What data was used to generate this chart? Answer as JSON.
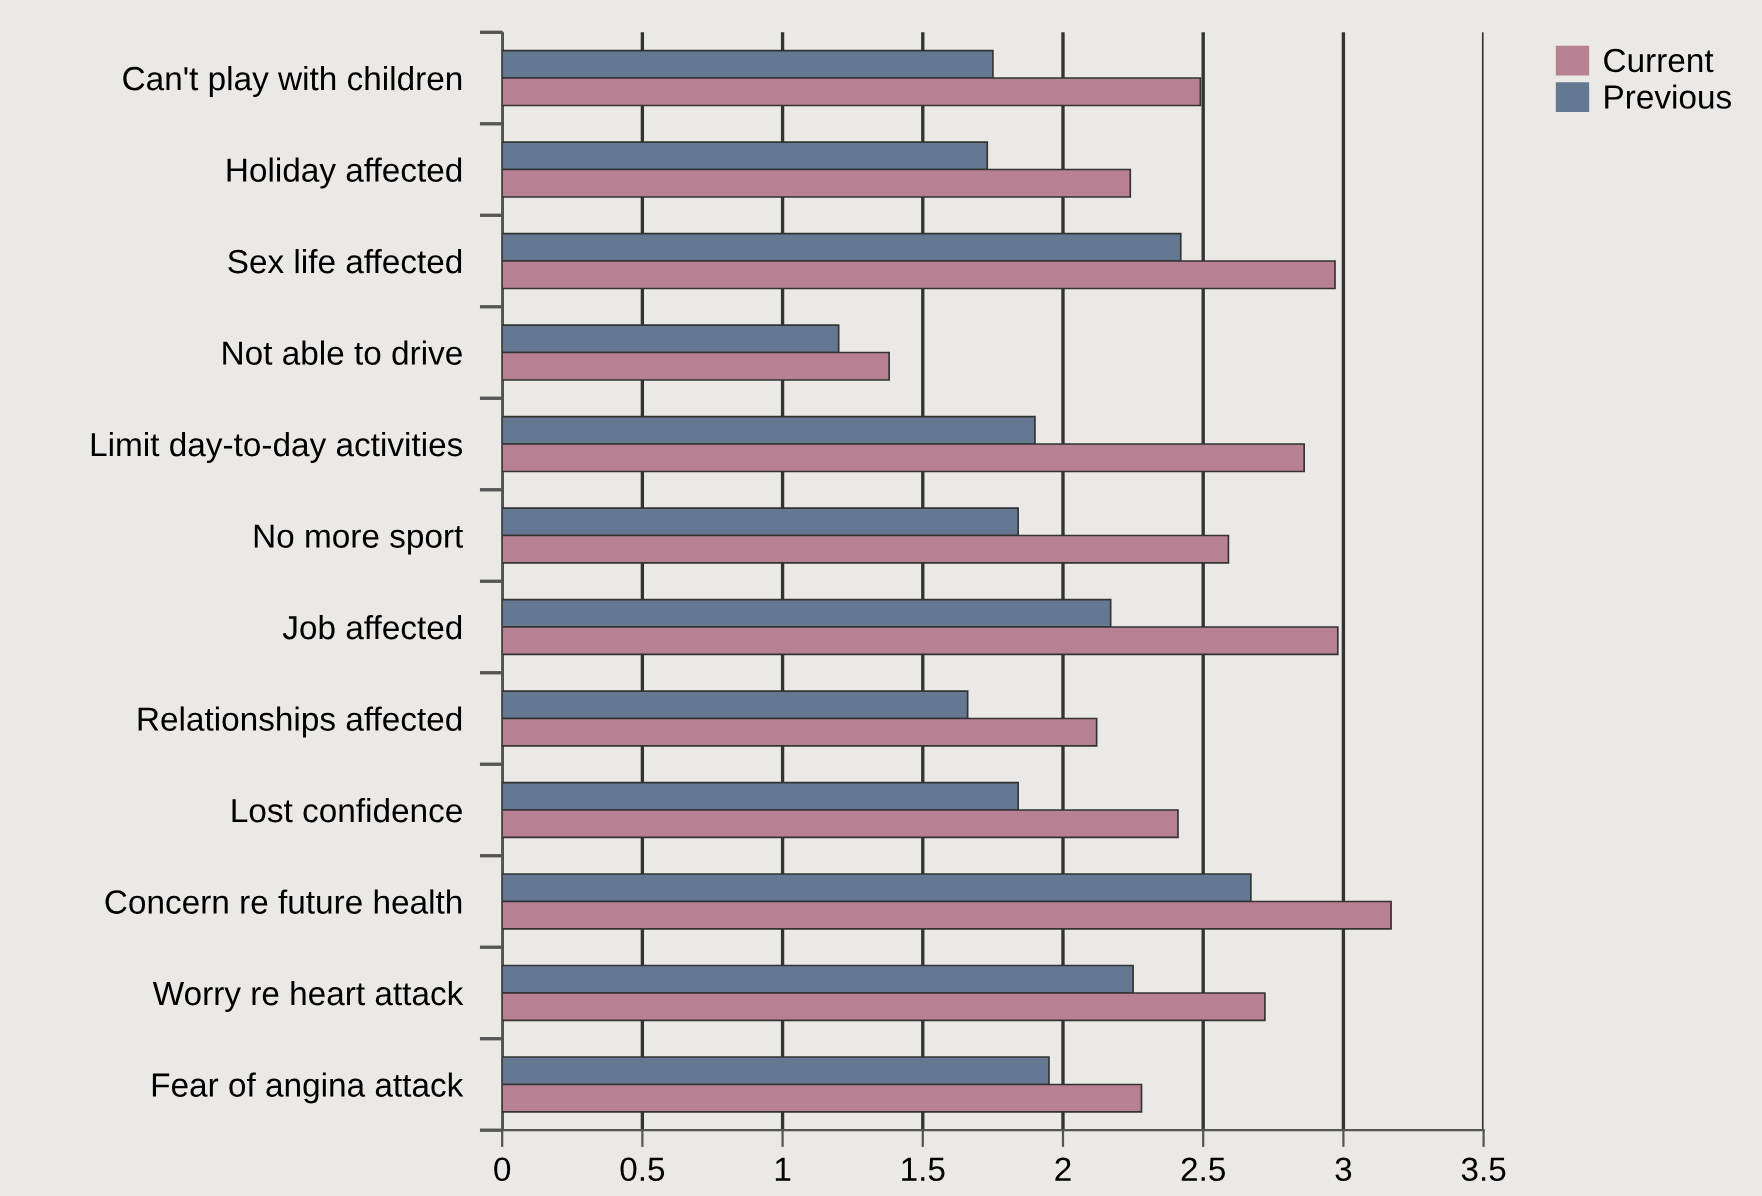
{
  "chart_data": {
    "type": "bar",
    "orientation": "horizontal",
    "categories": [
      "Can't play with children",
      "Holiday affected",
      "Sex life affected",
      "Not able to drive",
      "Limit day-to-day activities",
      "No more sport",
      "Job affected",
      "Relationships affected",
      "Lost confidence",
      "Concern re future health",
      "Worry re heart attack",
      "Fear of angina attack"
    ],
    "series": [
      {
        "name": "Previous",
        "color": "#647892",
        "values": [
          1.75,
          1.73,
          2.42,
          1.2,
          1.9,
          1.84,
          2.17,
          1.66,
          1.84,
          2.67,
          2.25,
          1.95
        ]
      },
      {
        "name": "Current",
        "color": "#b78093",
        "values": [
          2.49,
          2.24,
          2.97,
          1.38,
          2.86,
          2.59,
          2.98,
          2.12,
          2.41,
          3.17,
          2.72,
          2.28
        ]
      }
    ],
    "xlim": [
      0,
      3.5
    ],
    "xticks": [
      0,
      {
        "value": 0.5,
        "label": "0.5"
      },
      1,
      {
        "value": 1.5,
        "label": "1.5"
      },
      2,
      {
        "value": 2.5,
        "label": "2.5"
      },
      3,
      {
        "value": 3.5,
        "label": "3.5"
      }
    ],
    "grid": "x",
    "legend": "top right"
  }
}
